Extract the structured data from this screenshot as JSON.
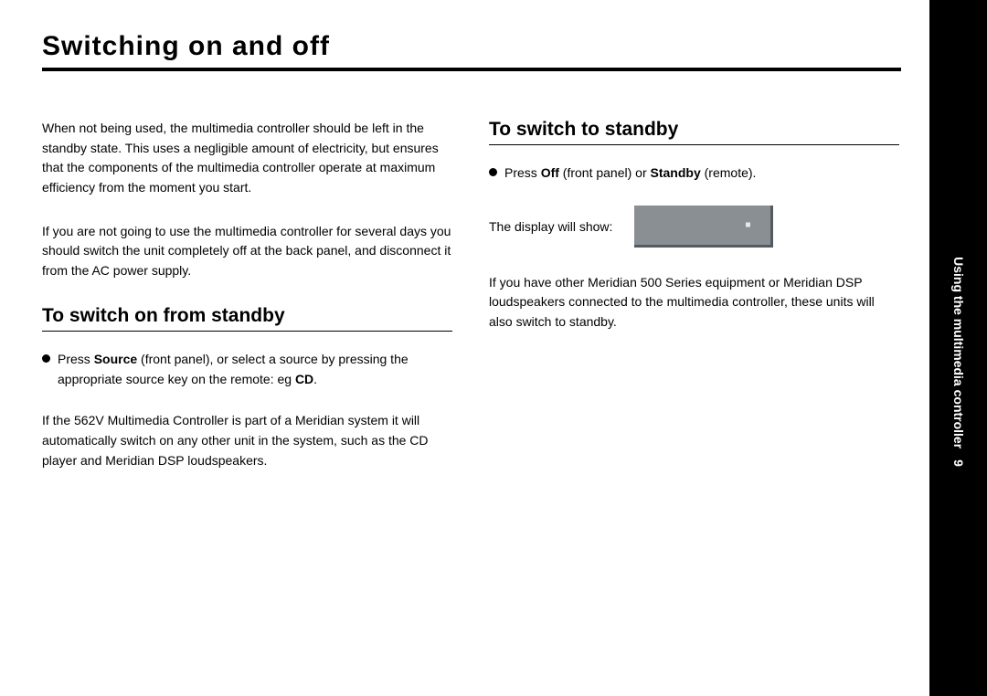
{
  "page": {
    "title": "Switching on and off",
    "sidebar_label": "Using the multimedia controller",
    "page_number": "9"
  },
  "left": {
    "intro_1": "When not being used, the multimedia controller should be left in the standby state. This uses a negligible amount of electricity, but ensures that the components of the multimedia controller operate at maximum efficiency from the moment you start.",
    "intro_2": "If you are not going to use the multimedia controller for several days you should switch the unit completely off at the back panel, and disconnect it from the AC power supply.",
    "subhead": "To switch on from standby",
    "bullet_pre": "Press ",
    "bullet_bold1": "Source",
    "bullet_mid": " (front panel), or select a source by pressing the appropriate source key on the remote: eg ",
    "bullet_bold2": "CD",
    "bullet_post": ".",
    "after": "If the 562V Multimedia Controller is part of a Meridian system it will automatically switch on any other unit in the system, such as the CD player and Meridian DSP loudspeakers."
  },
  "right": {
    "subhead": "To switch to standby",
    "bullet_pre": "Press ",
    "bullet_bold1": "Off",
    "bullet_mid": " (front panel) or ",
    "bullet_bold2": "Standby",
    "bullet_post": " (remote).",
    "display_caption": "The display will show:",
    "after": "If you have other Meridian 500 Series equipment or Meridian DSP loudspeakers connected to the multimedia controller, these units will also switch to standby."
  },
  "colors": {
    "sidebar_bg": "#000000",
    "display_bg": "#8a8f94",
    "display_shadow": "#555a5f",
    "display_dot": "#e8e8e8"
  }
}
